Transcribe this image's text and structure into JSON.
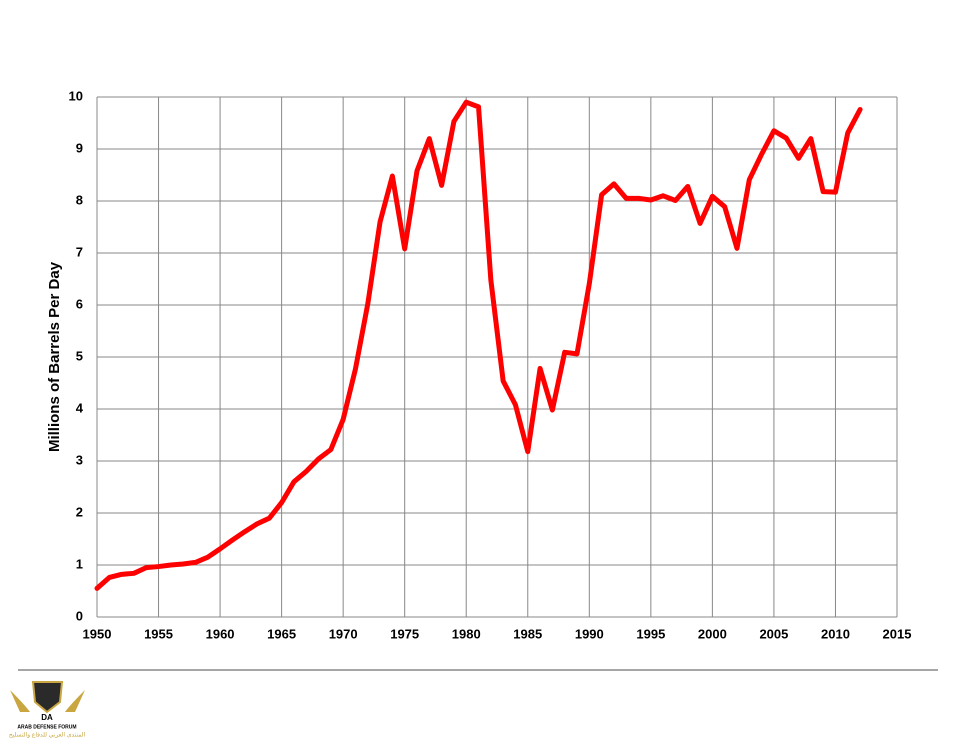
{
  "chart_data": {
    "type": "line",
    "y_label": "Millions of Barrels Per Day",
    "x": [
      1950,
      1951,
      1952,
      1953,
      1954,
      1955,
      1956,
      1957,
      1958,
      1959,
      1960,
      1961,
      1962,
      1963,
      1964,
      1965,
      1966,
      1967,
      1968,
      1969,
      1970,
      1971,
      1972,
      1973,
      1974,
      1975,
      1976,
      1977,
      1978,
      1979,
      1980,
      1981,
      1982,
      1983,
      1984,
      1985,
      1986,
      1987,
      1988,
      1989,
      1990,
      1991,
      1992,
      1993,
      1994,
      1995,
      1996,
      1997,
      1998,
      1999,
      2000,
      2001,
      2002,
      2003,
      2004,
      2005,
      2006,
      2007,
      2008,
      2009,
      2010,
      2011,
      2012
    ],
    "values": [
      0.55,
      0.76,
      0.82,
      0.84,
      0.95,
      0.97,
      1.0,
      1.02,
      1.05,
      1.15,
      1.31,
      1.48,
      1.64,
      1.79,
      1.9,
      2.2,
      2.6,
      2.8,
      3.04,
      3.22,
      3.8,
      4.77,
      6.02,
      7.6,
      8.48,
      7.08,
      8.58,
      9.2,
      8.3,
      9.53,
      9.9,
      9.81,
      6.48,
      4.54,
      4.08,
      3.18,
      4.78,
      3.98,
      5.09,
      5.06,
      6.41,
      8.12,
      8.33,
      8.05,
      8.05,
      8.02,
      8.1,
      8.01,
      8.28,
      7.57,
      8.09,
      7.89,
      7.09,
      8.41,
      8.9,
      9.35,
      9.21,
      8.82,
      9.2,
      8.18,
      8.17,
      9.31,
      9.76
    ],
    "color": "#ff0000",
    "xlim": [
      1950,
      2015
    ],
    "xticks": [
      1950,
      1955,
      1960,
      1965,
      1970,
      1975,
      1980,
      1985,
      1990,
      1995,
      2000,
      2005,
      2010,
      2015
    ],
    "ylim": [
      0,
      10
    ],
    "yticks": [
      0,
      1,
      2,
      3,
      4,
      5,
      6,
      7,
      8,
      9,
      10
    ],
    "grid": true
  },
  "logo": {
    "initials": "DA",
    "name": "ARAB DEFENSE FORUM",
    "arabic": "المنتدى العربي للدفاع والتسليح"
  }
}
